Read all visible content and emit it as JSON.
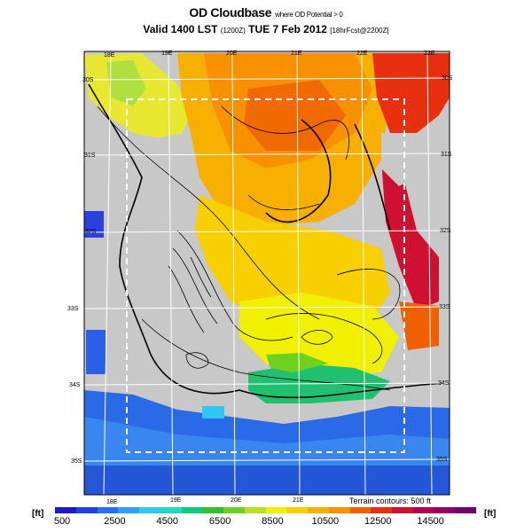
{
  "title": {
    "main": "OD Cloudbase",
    "sub": "where OD Potential > 0",
    "valid": "Valid 1400 LST",
    "utc": "(1200Z)",
    "date": "TUE 7 Feb 2012",
    "forecast": "[18hrFcst@2200Z]"
  },
  "map": {
    "lon_labels_top": [
      "18E",
      "19E",
      "20E",
      "21E",
      "22E",
      "23E"
    ],
    "lon_labels_bottom": [
      "18E",
      "19E",
      "20E",
      "21E"
    ],
    "lat_labels_left": [
      "30S",
      "31S",
      "32S",
      "33S",
      "34S",
      "35S"
    ],
    "lat_labels_right": [
      "30S",
      "31S",
      "32S",
      "33S",
      "34S",
      "35S"
    ],
    "terrain_note": "Terrain contours: 500 ft",
    "colors": {
      "land_gray": "#c8c8c8",
      "border_white": "#ffffff",
      "box_dash": "#ffffff"
    }
  },
  "colorbar": {
    "unit_left": "[ft]",
    "unit_right": "[ft]",
    "labels": [
      "500",
      "2500",
      "4500",
      "6500",
      "8500",
      "10500",
      "12500",
      "14500"
    ],
    "colors": [
      "#1818c8",
      "#2040e0",
      "#2870f0",
      "#30a0f8",
      "#30c8f0",
      "#20d8c0",
      "#10c878",
      "#30c030",
      "#70d020",
      "#b8e020",
      "#f0f000",
      "#f8d000",
      "#f8b000",
      "#f89000",
      "#f06000",
      "#e83010",
      "#d01030",
      "#b00050",
      "#900060",
      "#700070"
    ]
  }
}
